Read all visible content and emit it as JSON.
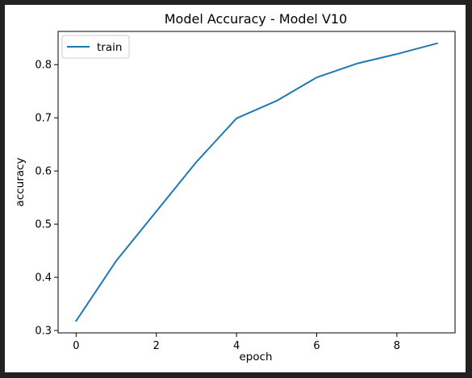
{
  "chart_data": {
    "type": "line",
    "title": "Model Accuracy - Model V10",
    "xlabel": "epoch",
    "ylabel": "accuracy",
    "x": [
      0,
      1,
      2,
      3,
      4,
      5,
      6,
      7,
      8,
      9
    ],
    "series": [
      {
        "name": "train",
        "color": "#1f77b4",
        "values": [
          0.318,
          0.431,
          0.524,
          0.617,
          0.699,
          0.732,
          0.776,
          0.802,
          0.82,
          0.84
        ]
      }
    ],
    "xlim": [
      -0.45,
      9.45
    ],
    "ylim": [
      0.2955,
      0.8625
    ],
    "xticks": [
      0,
      2,
      4,
      6,
      8
    ],
    "yticks": [
      0.3,
      0.4,
      0.5,
      0.6,
      0.7,
      0.8
    ],
    "xtick_labels": [
      "0",
      "2",
      "4",
      "6",
      "8"
    ],
    "ytick_labels": [
      "0.3",
      "0.4",
      "0.5",
      "0.6",
      "0.7",
      "0.8"
    ],
    "grid": false,
    "legend_position": "upper-left"
  }
}
